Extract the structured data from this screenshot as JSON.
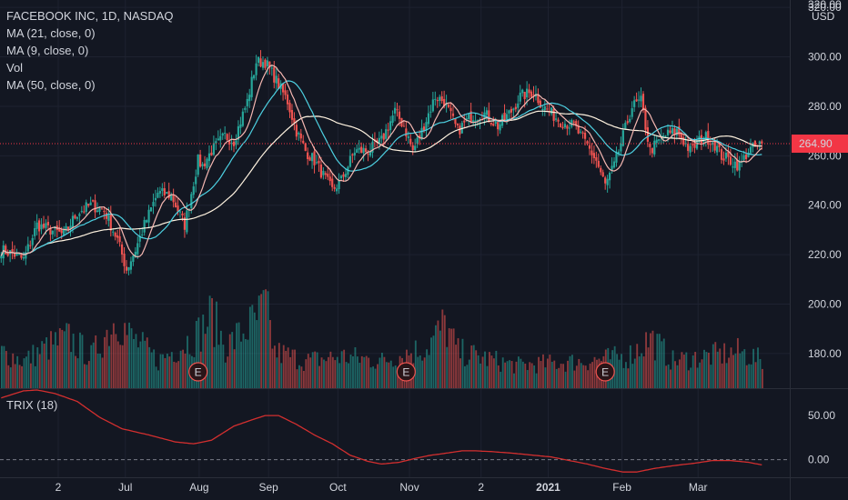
{
  "chart_data": {
    "type": "candlestick",
    "symbol_title": "FACEBOOK INC, 1D, NASDAQ",
    "currency": "USD",
    "last_price": "264.90",
    "last_price_value": 264.9,
    "indicators": [
      "MA (21, close, 0)",
      "MA (9, close, 0)",
      "Vol",
      "MA (50, close, 0)"
    ],
    "trix_label": "TRIX (18)",
    "price_axis": {
      "ticks": [
        "180.00",
        "200.00",
        "220.00",
        "240.00",
        "260.00",
        "280.00",
        "300.00",
        "320.00"
      ],
      "ylim": [
        166,
        323
      ]
    },
    "trix_axis": {
      "ticks": [
        "50.00",
        "0.00"
      ],
      "ylim": [
        -20,
        80
      ]
    },
    "x_labels": [
      "2",
      "Jul",
      "Aug",
      "Sep",
      "Oct",
      "Nov",
      "2",
      "2021",
      "Feb",
      "Mar"
    ],
    "earnings_marker": "E",
    "colors": {
      "up": "#26a69a",
      "down": "#ef5350",
      "ma21": "#4dd0e1",
      "ma9": "#f5b7b1",
      "ma50": "#fff3e0",
      "trix": "#d32f2f",
      "last": "#f23645",
      "grid": "#1e2230"
    },
    "close_anchors": [
      [
        0,
        222
      ],
      [
        6,
        220
      ],
      [
        10,
        218
      ],
      [
        16,
        232
      ],
      [
        22,
        230
      ],
      [
        28,
        228
      ],
      [
        34,
        237
      ],
      [
        40,
        240
      ],
      [
        46,
        238
      ],
      [
        52,
        226
      ],
      [
        56,
        214
      ],
      [
        60,
        222
      ],
      [
        64,
        232
      ],
      [
        70,
        245
      ],
      [
        76,
        244
      ],
      [
        82,
        232
      ],
      [
        88,
        258
      ],
      [
        90,
        256
      ],
      [
        94,
        262
      ],
      [
        100,
        268
      ],
      [
        104,
        266
      ],
      [
        110,
        282
      ],
      [
        114,
        298
      ],
      [
        118,
        298
      ],
      [
        122,
        292
      ],
      [
        128,
        282
      ],
      [
        132,
        270
      ],
      [
        136,
        262
      ],
      [
        140,
        258
      ],
      [
        144,
        252
      ],
      [
        148,
        246
      ],
      [
        152,
        250
      ],
      [
        158,
        262
      ],
      [
        164,
        262
      ],
      [
        170,
        266
      ],
      [
        176,
        278
      ],
      [
        180,
        272
      ],
      [
        184,
        262
      ],
      [
        188,
        270
      ],
      [
        194,
        284
      ],
      [
        198,
        282
      ],
      [
        204,
        270
      ],
      [
        210,
        276
      ],
      [
        216,
        277
      ],
      [
        222,
        272
      ],
      [
        228,
        278
      ],
      [
        232,
        284
      ],
      [
        238,
        286
      ],
      [
        242,
        280
      ],
      [
        250,
        274
      ],
      [
        256,
        272
      ],
      [
        262,
        264
      ],
      [
        266,
        258
      ],
      [
        270,
        248
      ],
      [
        274,
        256
      ],
      [
        278,
        268
      ],
      [
        282,
        280
      ],
      [
        286,
        282
      ],
      [
        290,
        262
      ],
      [
        296,
        268
      ],
      [
        302,
        270
      ],
      [
        308,
        262
      ],
      [
        314,
        268
      ],
      [
        318,
        266
      ],
      [
        322,
        260
      ],
      [
        326,
        258
      ],
      [
        330,
        256
      ],
      [
        334,
        262
      ],
      [
        340,
        264.9
      ]
    ],
    "volume_anchors": [
      [
        0,
        40
      ],
      [
        10,
        30
      ],
      [
        20,
        45
      ],
      [
        30,
        55
      ],
      [
        40,
        35
      ],
      [
        52,
        80
      ],
      [
        56,
        60
      ],
      [
        70,
        30
      ],
      [
        88,
        60
      ],
      [
        94,
        80
      ],
      [
        100,
        45
      ],
      [
        114,
        75
      ],
      [
        118,
        90
      ],
      [
        122,
        40
      ],
      [
        136,
        30
      ],
      [
        152,
        35
      ],
      [
        170,
        30
      ],
      [
        190,
        45
      ],
      [
        198,
        70
      ],
      [
        204,
        40
      ],
      [
        230,
        25
      ],
      [
        262,
        30
      ],
      [
        280,
        35
      ],
      [
        290,
        55
      ],
      [
        300,
        30
      ],
      [
        330,
        40
      ],
      [
        340,
        30
      ]
    ],
    "trix_anchors": [
      [
        0,
        70
      ],
      [
        5,
        74
      ],
      [
        10,
        78
      ],
      [
        16,
        79
      ],
      [
        24,
        75
      ],
      [
        34,
        66
      ],
      [
        44,
        48
      ],
      [
        54,
        35
      ],
      [
        66,
        28
      ],
      [
        78,
        20
      ],
      [
        86,
        18
      ],
      [
        94,
        22
      ],
      [
        104,
        38
      ],
      [
        112,
        45
      ],
      [
        118,
        50
      ],
      [
        124,
        50
      ],
      [
        132,
        40
      ],
      [
        140,
        28
      ],
      [
        148,
        18
      ],
      [
        156,
        5
      ],
      [
        164,
        -2
      ],
      [
        170,
        -5
      ],
      [
        178,
        -3
      ],
      [
        186,
        2
      ],
      [
        192,
        5
      ],
      [
        198,
        7
      ],
      [
        206,
        10
      ],
      [
        212,
        10
      ],
      [
        220,
        9
      ],
      [
        230,
        7
      ],
      [
        238,
        5
      ],
      [
        246,
        3
      ],
      [
        254,
        -1
      ],
      [
        262,
        -5
      ],
      [
        270,
        -10
      ],
      [
        278,
        -14
      ],
      [
        284,
        -14
      ],
      [
        292,
        -10
      ],
      [
        300,
        -7
      ],
      [
        310,
        -4
      ],
      [
        318,
        -1
      ],
      [
        326,
        -1
      ],
      [
        334,
        -3
      ],
      [
        340,
        -6
      ]
    ]
  }
}
